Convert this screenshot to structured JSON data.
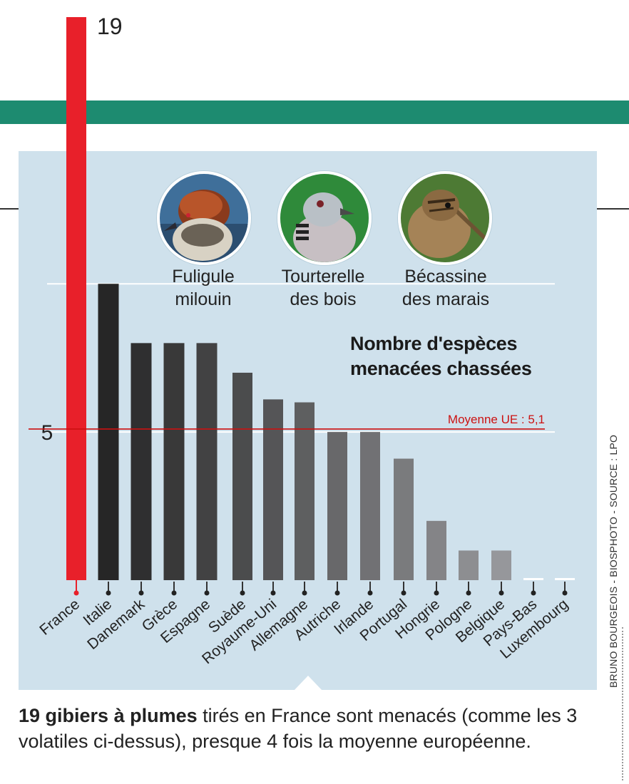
{
  "colors": {
    "stripe": "#1d8b70",
    "panel": "#cfe1ec",
    "france_bar": "#e8202a",
    "average_line": "#cc1111",
    "dark_bar": "#262626",
    "light_bar": "#a9aaae"
  },
  "birds": [
    {
      "name": "Fuligule\nmilouin",
      "icon": "common-pochard-photo"
    },
    {
      "name": "Tourterelle\ndes bois",
      "icon": "turtle-dove-photo"
    },
    {
      "name": "Bécassine\ndes marais",
      "icon": "common-snipe-photo"
    }
  ],
  "chart_title": "Nombre d'espèces\nmenacées chassées",
  "credit": "BRUNO BOURGEOIS - BIOSPHOTO - SOURCE : LPO",
  "caption": {
    "bold": "19 gibiers à plumes",
    "rest": " tirés en France sont menacés (comme les 3 volatiles ci-dessus), presque 4 fois la moyenne européenne."
  },
  "chart_data": {
    "type": "bar",
    "categories": [
      "France",
      "Italie",
      "Danemark",
      "Grèce",
      "Espagne",
      "Suède",
      "Royaume-Uni",
      "Allemagne",
      "Autriche",
      "Irlande",
      "Portugal",
      "Hongrie",
      "Pologne",
      "Belgique",
      "Pays-Bas",
      "Luxembourg"
    ],
    "values": [
      19,
      10,
      8,
      8,
      8,
      7,
      6.1,
      6,
      5,
      5,
      4.1,
      2,
      1,
      1,
      0,
      0
    ],
    "labelled_values": {
      "France": "19"
    },
    "ytick_labels": [
      "5"
    ],
    "ylim": [
      0,
      19
    ],
    "gridlines": [
      5,
      10
    ],
    "average_line": {
      "value": 5.1,
      "label": "Moyenne UE : 5,1"
    }
  }
}
